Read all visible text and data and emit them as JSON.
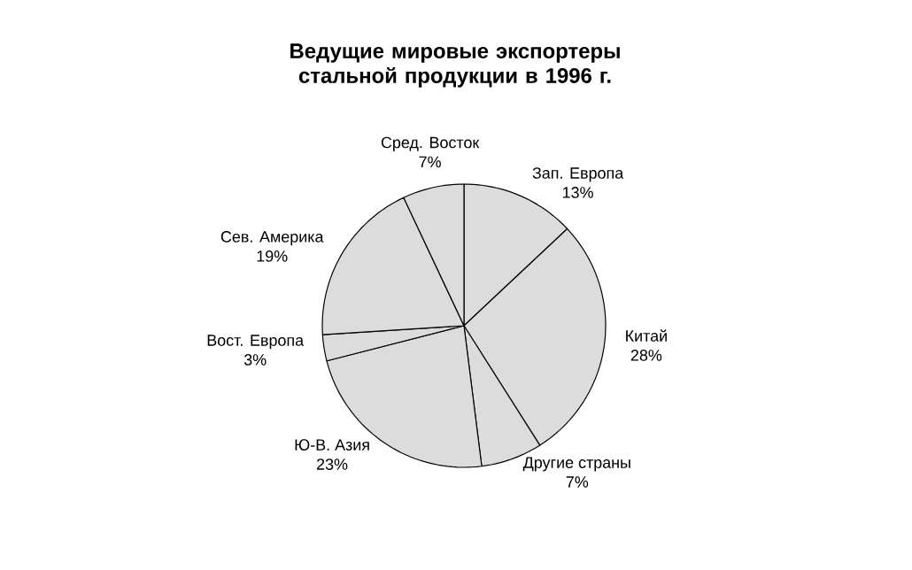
{
  "chart_data": {
    "type": "pie",
    "title": "Ведущие мировые экспортеры стальной продукции в 1996 г.",
    "categories": [
      "Зап. Европа",
      "Китай",
      "Другие страны",
      "Ю-В. Азия",
      "Вост. Европа",
      "Сев. Америка",
      "Сред. Восток"
    ],
    "values": [
      13,
      28,
      7,
      23,
      3,
      19,
      7
    ],
    "colors": [
      "#dcdcdc",
      "#dcdcdc",
      "#dcdcdc",
      "#dcdcdc",
      "#dcdcdc",
      "#dcdcdc",
      "#dcdcdc"
    ],
    "value_labels": [
      "13%",
      "28%",
      "7%",
      "23%",
      "3%",
      "19%",
      "7%"
    ]
  }
}
